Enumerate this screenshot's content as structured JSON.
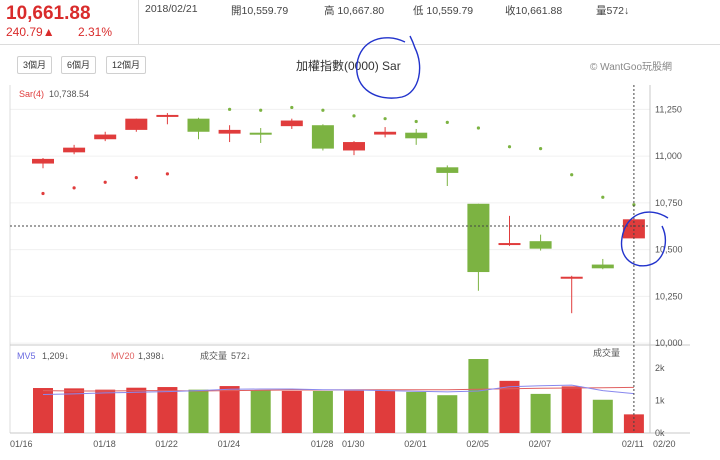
{
  "header": {
    "price": "10,661.88",
    "change": "240.79▲",
    "change_pct": "2.31%",
    "date": "2018/02/21",
    "open": "開10,559.79",
    "high": "高 10,667.80",
    "low": "低 10,559.79",
    "close": "收10,661.88",
    "volume": "量572↓"
  },
  "range_buttons": [
    "3個月",
    "6個月",
    "12個月"
  ],
  "chart_title": "加權指數(0000) Sar",
  "brand": "© WantGoo玩股網",
  "sar_label": "Sar(4)",
  "sar_value": "10,738.54",
  "volume_legend": {
    "mv5": "MV5",
    "mv5_value": "1,209↓",
    "mv20": "MV20",
    "mv20_value": "1,398↓",
    "vol_label": "成交量",
    "vol_value": "572↓",
    "panel_label": "成交量"
  },
  "colors": {
    "up": "#e03c3c",
    "down": "#7cb342",
    "mv5": "#8888ee",
    "mv20": "#e06060"
  },
  "chart_data": {
    "type": "candlestick",
    "price_axis": {
      "ticks": [
        10000,
        10250,
        10500,
        10750,
        11000,
        11250
      ],
      "tick_labels": [
        "10,000",
        "10,250",
        "10,500",
        "10,750",
        "11,000",
        "11,250"
      ],
      "ylim": [
        9990,
        11380
      ]
    },
    "volume_axis": {
      "ticks": [
        0,
        1000,
        2000
      ],
      "tick_labels": [
        "0k",
        "1k",
        "2k"
      ],
      "ylim": [
        0,
        2700
      ]
    },
    "x_tick_labels": [
      {
        "label": "01/16",
        "index": 0
      },
      {
        "label": "01/18",
        "index": 2
      },
      {
        "label": "01/22",
        "index": 4
      },
      {
        "label": "01/24",
        "index": 6
      },
      {
        "label": "01/28",
        "index": 9
      },
      {
        "label": "01/30",
        "index": 10
      },
      {
        "label": "02/01",
        "index": 12
      },
      {
        "label": "02/05",
        "index": 14
      },
      {
        "label": "02/07",
        "index": 16
      },
      {
        "label": "02/11",
        "index": 19
      },
      {
        "label": "02/20",
        "index": 20
      }
    ],
    "candles": [
      {
        "o": 10960,
        "h": 10990,
        "l": 10935,
        "c": 10985
      },
      {
        "o": 11020,
        "h": 11060,
        "l": 11010,
        "c": 11045
      },
      {
        "o": 11090,
        "h": 11130,
        "l": 11080,
        "c": 11115
      },
      {
        "o": 11140,
        "h": 11200,
        "l": 11130,
        "c": 11200
      },
      {
        "o": 11210,
        "h": 11230,
        "l": 11170,
        "c": 11220
      },
      {
        "o": 11200,
        "h": 11205,
        "l": 11090,
        "c": 11130
      },
      {
        "o": 11120,
        "h": 11165,
        "l": 11075,
        "c": 11140
      },
      {
        "o": 11125,
        "h": 11150,
        "l": 11070,
        "c": 11120
      },
      {
        "o": 11160,
        "h": 11200,
        "l": 11145,
        "c": 11190
      },
      {
        "o": 11165,
        "h": 11170,
        "l": 11030,
        "c": 11040
      },
      {
        "o": 11030,
        "h": 11080,
        "l": 11005,
        "c": 11075
      },
      {
        "o": 11115,
        "h": 11155,
        "l": 11100,
        "c": 11130
      },
      {
        "o": 11125,
        "h": 11145,
        "l": 11060,
        "c": 11095
      },
      {
        "o": 10940,
        "h": 10950,
        "l": 10840,
        "c": 10910
      },
      {
        "o": 10745,
        "h": 10745,
        "l": 10280,
        "c": 10380
      },
      {
        "o": 10525,
        "h": 10680,
        "l": 10520,
        "c": 10535
      },
      {
        "o": 10545,
        "h": 10580,
        "l": 10495,
        "c": 10505
      },
      {
        "o": 10350,
        "h": 10360,
        "l": 10160,
        "c": 10355
      },
      {
        "o": 10420,
        "h": 10450,
        "l": 10395,
        "c": 10400
      },
      {
        "o": 10560,
        "h": 10668,
        "l": 10560,
        "c": 10662
      }
    ],
    "sar": [
      10800,
      10830,
      10860,
      10885,
      10905,
      11175,
      11250,
      11245,
      11260,
      11245,
      11215,
      11200,
      11185,
      11180,
      11150,
      11050,
      11040,
      10900,
      10780,
      10740
    ],
    "volume": [
      1380,
      1370,
      1330,
      1390,
      1410,
      1330,
      1440,
      1310,
      1290,
      1290,
      1300,
      1300,
      1260,
      1160,
      2270,
      1600,
      1200,
      1430,
      1020,
      572
    ],
    "mv5": [
      1180,
      1200,
      1230,
      1250,
      1270,
      1300,
      1340,
      1350,
      1350,
      1330,
      1320,
      1300,
      1280,
      1260,
      1290,
      1420,
      1450,
      1470,
      1300,
      1209
    ],
    "mv20": [
      1300,
      1290,
      1290,
      1300,
      1300,
      1290,
      1300,
      1310,
      1320,
      1320,
      1330,
      1330,
      1330,
      1330,
      1340,
      1360,
      1370,
      1380,
      1390,
      1398
    ]
  }
}
